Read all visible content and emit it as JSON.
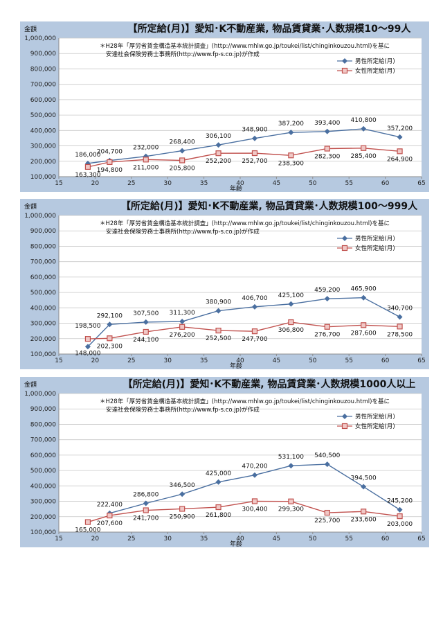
{
  "chart_data": [
    {
      "type": "line",
      "title": "【所定給(月)】愛知･K不動産業, 物品賃貸業･人数規模10～99人",
      "ylabel": "金額",
      "xlabel": "年齢",
      "note_line1": "＊H28年「厚労省賃金構造基本統計調査」(http://www.mhlw.go.jp/toukei/list/chinginkouzou.html)を基に",
      "note_line2": "安達社会保険労務士事務所(http://www.fp-s.co.jp)が作成",
      "xlim": [
        15,
        65
      ],
      "xticks": [
        15,
        20,
        25,
        30,
        35,
        40,
        45,
        50,
        55,
        60,
        65
      ],
      "ylim": [
        100000,
        1000000
      ],
      "yticks": [
        "100,000",
        "200,000",
        "300,000",
        "400,000",
        "500,000",
        "600,000",
        "700,000",
        "800,000",
        "900,000",
        "1,000,000"
      ],
      "x": [
        19,
        22,
        27,
        32,
        37,
        42,
        47,
        52,
        57,
        62
      ],
      "legend_position": "top-right",
      "series": [
        {
          "name": "男性所定給(月)",
          "color": "#4a6fa0",
          "marker": "diamond",
          "values": [
            186000,
            204700,
            232000,
            268400,
            306100,
            348900,
            387200,
            393400,
            410800,
            357200
          ],
          "labels": [
            "186,000",
            "204,700",
            "232,000",
            "268,400",
            "306,100",
            "348,900",
            "387,200",
            "393,400",
            "410,800",
            "357,200"
          ]
        },
        {
          "name": "女性所定給(月)",
          "color": "#c0504d",
          "marker": "square",
          "values": [
            163300,
            194800,
            211000,
            205800,
            252200,
            252700,
            238300,
            282300,
            285400,
            264900
          ],
          "labels": [
            "163,300",
            "194,800",
            "211,000",
            "205,800",
            "252,200",
            "252,700",
            "238,300",
            "282,300",
            "285,400",
            "264,900"
          ]
        }
      ]
    },
    {
      "type": "line",
      "title": "【所定給(月)】愛知･K不動産業, 物品賃貸業･人数規模100～999人",
      "ylabel": "金額",
      "xlabel": "年齢",
      "note_line1": "＊H28年「厚労省賃金構造基本統計調査」(http://www.mhlw.go.jp/toukei/list/chinginkouzou.html)を基に",
      "note_line2": "安達社会保険労務士事務所(http://www.fp-s.co.jp)が作成",
      "xlim": [
        15,
        65
      ],
      "xticks": [
        15,
        20,
        25,
        30,
        35,
        40,
        45,
        50,
        55,
        60,
        65
      ],
      "ylim": [
        100000,
        1000000
      ],
      "yticks": [
        "100,000",
        "200,000",
        "300,000",
        "400,000",
        "500,000",
        "600,000",
        "700,000",
        "800,000",
        "900,000",
        "1,000,000"
      ],
      "x": [
        19,
        22,
        27,
        32,
        37,
        42,
        47,
        52,
        57,
        62
      ],
      "legend_position": "top-right",
      "series": [
        {
          "name": "男性所定給(月)",
          "color": "#4a6fa0",
          "marker": "diamond",
          "values": [
            148000,
            292100,
            307500,
            311300,
            380900,
            406700,
            425100,
            459200,
            465900,
            340700
          ],
          "labels": [
            "148,000",
            "292,100",
            "307,500",
            "311,300",
            "380,900",
            "406,700",
            "425,100",
            "459,200",
            "465,900",
            "340,700"
          ]
        },
        {
          "name": "女性所定給(月)",
          "color": "#c0504d",
          "marker": "square",
          "values": [
            198500,
            202300,
            244100,
            276200,
            252500,
            247700,
            306800,
            276700,
            287600,
            278500
          ],
          "labels": [
            "198,500",
            "202,300",
            "244,100",
            "276,200",
            "252,500",
            "247,700",
            "306,800",
            "276,700",
            "287,600",
            "278,500"
          ]
        }
      ]
    },
    {
      "type": "line",
      "title": "【所定給(月)】愛知･K不動産業, 物品賃貸業･人数規模1000人以上",
      "ylabel": "金額",
      "xlabel": "年齢",
      "note_line1": "＊H28年「厚労省賃金構造基本統計調査」(http://www.mhlw.go.jp/toukei/list/chinginkouzou.html)を基に",
      "note_line2": "安達社会保険労務士事務所(http://www.fp-s.co.jp)が作成",
      "xlim": [
        15,
        65
      ],
      "xticks": [
        15,
        20,
        25,
        30,
        35,
        40,
        45,
        50,
        55,
        60,
        65
      ],
      "ylim": [
        100000,
        1000000
      ],
      "yticks": [
        "100,000",
        "200,000",
        "300,000",
        "400,000",
        "500,000",
        "600,000",
        "700,000",
        "800,000",
        "900,000",
        "1,000,000"
      ],
      "x": [
        22,
        27,
        32,
        37,
        42,
        47,
        52,
        57,
        62
      ],
      "female_x": [
        19,
        22,
        27,
        32,
        37,
        42,
        47,
        52,
        57,
        62
      ],
      "legend_position": "top-right",
      "series": [
        {
          "name": "男性所定給(月)",
          "color": "#4a6fa0",
          "marker": "diamond",
          "x": [
            22,
            27,
            32,
            37,
            42,
            47,
            52,
            57,
            62
          ],
          "values": [
            222400,
            286800,
            346500,
            425000,
            470200,
            531100,
            540500,
            394500,
            245200
          ],
          "labels": [
            "222,400",
            "286,800",
            "346,500",
            "425,000",
            "470,200",
            "531,100",
            "540,500",
            "394,500",
            "245,200"
          ]
        },
        {
          "name": "女性所定給(月)",
          "color": "#c0504d",
          "marker": "square",
          "x": [
            19,
            22,
            27,
            32,
            37,
            42,
            47,
            52,
            57,
            62
          ],
          "values": [
            165000,
            207600,
            241700,
            250900,
            261800,
            300400,
            299300,
            225700,
            233600,
            203000
          ],
          "labels": [
            "165,000",
            "207,600",
            "241,700",
            "250,900",
            "261,800",
            "300,400",
            "299,300",
            "225,700",
            "233,600",
            "203,000"
          ]
        }
      ]
    }
  ]
}
